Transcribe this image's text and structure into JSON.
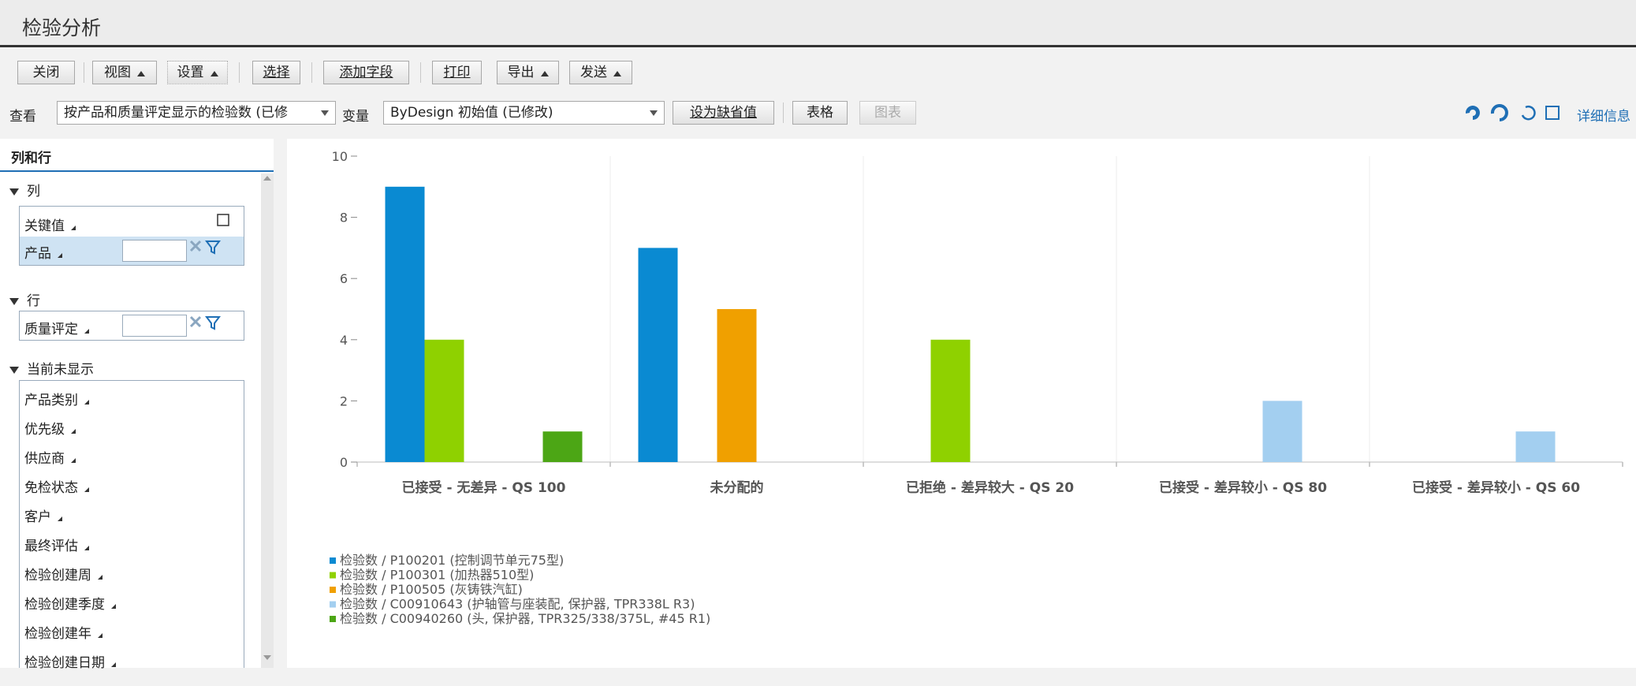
{
  "header": {
    "title": "检验分析"
  },
  "toolbar": {
    "buttons": [
      "关闭",
      "视图",
      "设置",
      "选择",
      "添加字段",
      "打印",
      "导出",
      "发送"
    ]
  },
  "view_bar": {
    "view_label": "查看",
    "view_value": "按产品和质量评定显示的检验数 (已修",
    "variant_label": "变量",
    "variant_value": "ByDesign 初始值 (已修改)",
    "set_default": "设为缺省值",
    "table": "表格",
    "chart": "图表",
    "details": "详细信息"
  },
  "panel": {
    "title": "列和行",
    "columns": {
      "label": "列",
      "items": [
        "关键值",
        "产品"
      ]
    },
    "rows": {
      "label": "行",
      "items": [
        "质量评定"
      ]
    },
    "hidden": {
      "label": "当前未显示",
      "items": [
        "产品类别",
        "优先级",
        "供应商",
        "免检状态",
        "客户",
        "最终评估",
        "检验创建周",
        "检验创建季度",
        "检验创建年",
        "检验创建日期"
      ]
    }
  },
  "chart_data": {
    "type": "bar",
    "categories": [
      "已接受 - 无差异 - QS 100",
      "未分配的",
      "已拒绝 - 差异较大 - QS 20",
      "已接受 - 差异较小 - QS 80",
      "已接受 - 差异较小 - QS 60"
    ],
    "series": [
      {
        "name": "检验数 / P100201 (控制调节单元75型)",
        "color": "#0a8ad2",
        "values": [
          9,
          7,
          null,
          null,
          null
        ]
      },
      {
        "name": "检验数 / P100301 (加热器510型)",
        "color": "#8fd100",
        "values": [
          4,
          null,
          4,
          null,
          null
        ]
      },
      {
        "name": "检验数 / P100505 (灰铸铁汽缸)",
        "color": "#f0a000",
        "values": [
          null,
          5,
          null,
          null,
          null
        ]
      },
      {
        "name": "检验数 / C00910643 (护轴管与座装配, 保护器, TPR338L R3)",
        "color": "#a3cff0",
        "values": [
          null,
          null,
          null,
          2,
          1
        ]
      },
      {
        "name": "检验数 / C00940260 (头, 保护器, TPR325/338/375L, #45 R1)",
        "color": "#4ca615",
        "values": [
          1,
          null,
          null,
          null,
          null
        ]
      }
    ],
    "ylim": [
      0,
      10
    ],
    "yticks": [
      0,
      2,
      4,
      6,
      8,
      10
    ]
  }
}
